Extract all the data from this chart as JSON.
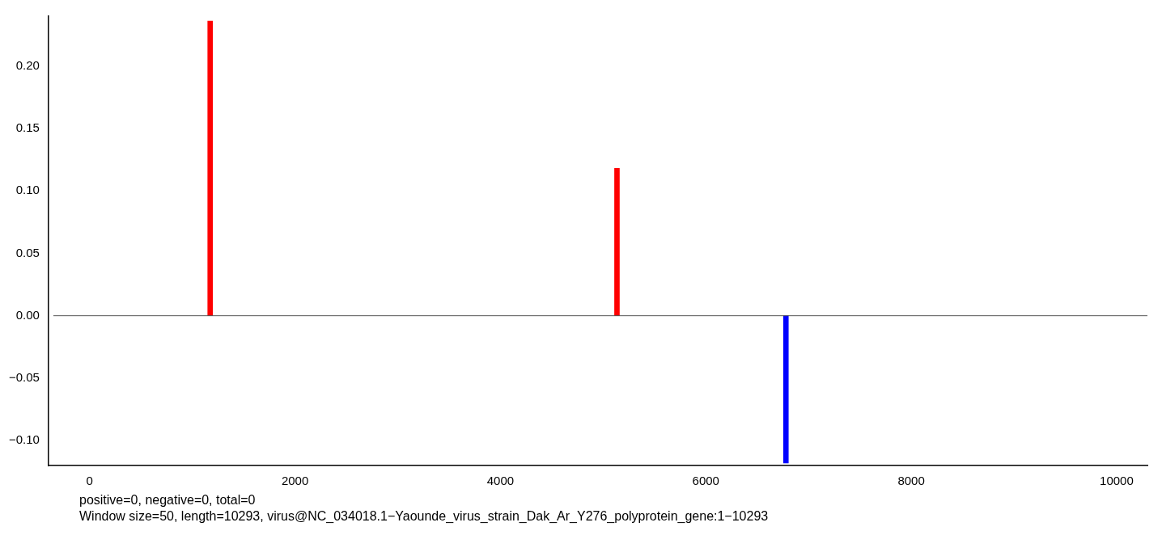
{
  "chart_data": {
    "type": "bar",
    "x": [
      1174,
      5135,
      6780
    ],
    "values": [
      0.236,
      0.118,
      -0.118
    ],
    "colors": [
      "#ff0000",
      "#ff0000",
      "#0000ff"
    ],
    "xlim": [
      -400,
      10300
    ],
    "xticks": [
      0,
      2000,
      4000,
      6000,
      8000,
      10000
    ],
    "ylim": [
      -0.12,
      0.24
    ],
    "yticks": [
      {
        "value": -0.1,
        "label": "−0.10"
      },
      {
        "value": -0.05,
        "label": "−0.05"
      },
      {
        "value": 0,
        "label": "0.00"
      },
      {
        "value": 0.05,
        "label": "0.05"
      },
      {
        "value": 0.1,
        "label": "0.10"
      },
      {
        "value": 0.15,
        "label": "0.15"
      },
      {
        "value": 0.2,
        "label": "0.20"
      }
    ],
    "ref_lines": [
      {
        "axis": "y",
        "value": 0,
        "color": "#555555"
      }
    ],
    "annotations": [
      "positive=0, negative=0, total=0",
      "Window size=50, length=10293, virus@NC_034018.1−Yaounde_virus_strain_Dak_Ar_Y276_polyprotein_gene:1−10293"
    ]
  }
}
